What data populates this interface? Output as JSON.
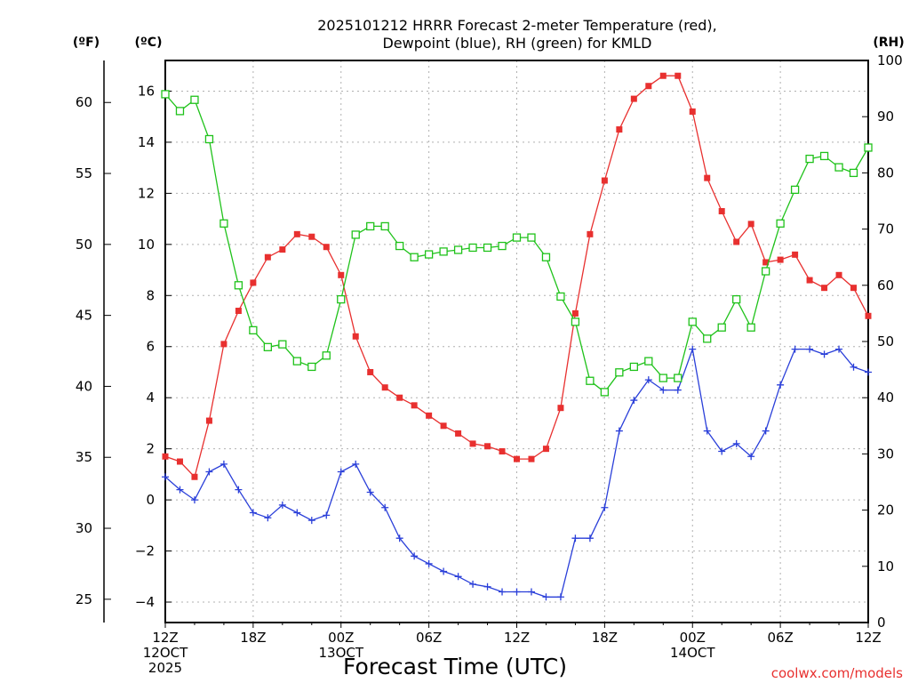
{
  "chart_data": {
    "type": "line",
    "title_line1": "2025101212 HRRR Forecast 2-meter Temperature (red),",
    "title_line2": "Dewpoint (blue), RH (green) for KMLD",
    "xlabel": "Forecast Time (UTC)",
    "credit": "coolwx.com/models",
    "units": {
      "f": "(ºF)",
      "c": "(ºC)",
      "rh": "(RH)"
    },
    "x": [
      0,
      1,
      2,
      3,
      4,
      5,
      6,
      7,
      8,
      9,
      10,
      11,
      12,
      13,
      14,
      15,
      16,
      17,
      18,
      19,
      20,
      21,
      22,
      23,
      24,
      25,
      26,
      27,
      28,
      29,
      30,
      31,
      32,
      33,
      34,
      35,
      36,
      37,
      38,
      39,
      40,
      41,
      42,
      43,
      44,
      45,
      46,
      47,
      48
    ],
    "x_ticks": [
      {
        "x": 0,
        "lines": [
          "12Z",
          "12OCT",
          "2025"
        ]
      },
      {
        "x": 6,
        "lines": [
          "18Z"
        ]
      },
      {
        "x": 12,
        "lines": [
          "00Z",
          "13OCT"
        ]
      },
      {
        "x": 18,
        "lines": [
          "06Z"
        ]
      },
      {
        "x": 24,
        "lines": [
          "12Z"
        ]
      },
      {
        "x": 30,
        "lines": [
          "18Z"
        ]
      },
      {
        "x": 36,
        "lines": [
          "00Z",
          "14OCT"
        ]
      },
      {
        "x": 42,
        "lines": [
          "06Z"
        ]
      },
      {
        "x": 48,
        "lines": [
          "12Z"
        ]
      }
    ],
    "xlim": [
      0,
      48
    ],
    "y_c": {
      "lim": [
        -4.8,
        17.2
      ],
      "ticks": [
        -4,
        -2,
        0,
        2,
        4,
        6,
        8,
        10,
        12,
        14,
        16
      ],
      "tick_labels": [
        "−4",
        "−2",
        "0",
        "2",
        "4",
        "6",
        "8",
        "10",
        "12",
        "14",
        "16"
      ]
    },
    "y_f": {
      "lim": [
        23.36,
        62.96
      ],
      "ticks": [
        25,
        30,
        35,
        40,
        45,
        50,
        55,
        60
      ],
      "tick_labels": [
        "25",
        "30",
        "35",
        "40",
        "45",
        "50",
        "55",
        "60"
      ]
    },
    "y_rh": {
      "lim": [
        0,
        100
      ],
      "ticks": [
        0,
        10,
        20,
        30,
        40,
        50,
        60,
        70,
        80,
        90,
        100
      ],
      "tick_labels": [
        "0",
        "10",
        "20",
        "30",
        "40",
        "50",
        "60",
        "70",
        "80",
        "90",
        "100"
      ]
    },
    "grid": true,
    "series": [
      {
        "key": "temperature",
        "axis": "c",
        "color": "#e8302f",
        "marker": "filled-square",
        "values": [
          1.7,
          1.5,
          0.9,
          3.1,
          6.1,
          7.4,
          8.5,
          9.5,
          9.8,
          10.4,
          10.3,
          9.9,
          8.8,
          6.4,
          5.0,
          4.4,
          4.0,
          3.7,
          3.3,
          2.9,
          2.6,
          2.2,
          2.1,
          1.9,
          1.6,
          1.6,
          2.0,
          3.6,
          7.3,
          10.4,
          12.5,
          14.5,
          15.7,
          16.2,
          16.6,
          16.6,
          15.2,
          12.6,
          11.3,
          10.1,
          10.8,
          9.3,
          9.4,
          9.6,
          8.6,
          8.3,
          8.8,
          8.3,
          7.2
        ]
      },
      {
        "key": "dewpoint",
        "axis": "c",
        "color": "#2a3fd9",
        "marker": "plus",
        "values": [
          0.9,
          0.4,
          0.0,
          1.1,
          1.4,
          0.4,
          -0.5,
          -0.7,
          -0.2,
          -0.5,
          -0.8,
          -0.6,
          1.1,
          1.4,
          0.3,
          -0.3,
          -1.5,
          -2.2,
          -2.5,
          -2.8,
          -3.0,
          -3.3,
          -3.4,
          -3.6,
          -3.6,
          -3.6,
          -3.8,
          -3.8,
          -1.5,
          -1.5,
          -0.3,
          2.7,
          3.9,
          4.7,
          4.3,
          4.3,
          5.9,
          2.7,
          1.9,
          2.2,
          1.7,
          2.7,
          4.5,
          5.9,
          5.9,
          5.7,
          5.9,
          5.2,
          5.0
        ]
      },
      {
        "key": "rh",
        "axis": "rh",
        "color": "#1fc21a",
        "marker": "open-square",
        "values": [
          94,
          91,
          93,
          86,
          71,
          60,
          52,
          49,
          49.5,
          46.5,
          45.5,
          47.5,
          57.5,
          69,
          70.5,
          70.5,
          67,
          65,
          65.5,
          66,
          66.3,
          66.7,
          66.7,
          67,
          68.5,
          68.5,
          65,
          58,
          53.5,
          43,
          41,
          44.5,
          45.5,
          46.5,
          43.5,
          43.5,
          53.5,
          50.5,
          52.5,
          57.5,
          52.5,
          62.5,
          71,
          77,
          82.5,
          83,
          81,
          80,
          84.5
        ]
      }
    ]
  }
}
